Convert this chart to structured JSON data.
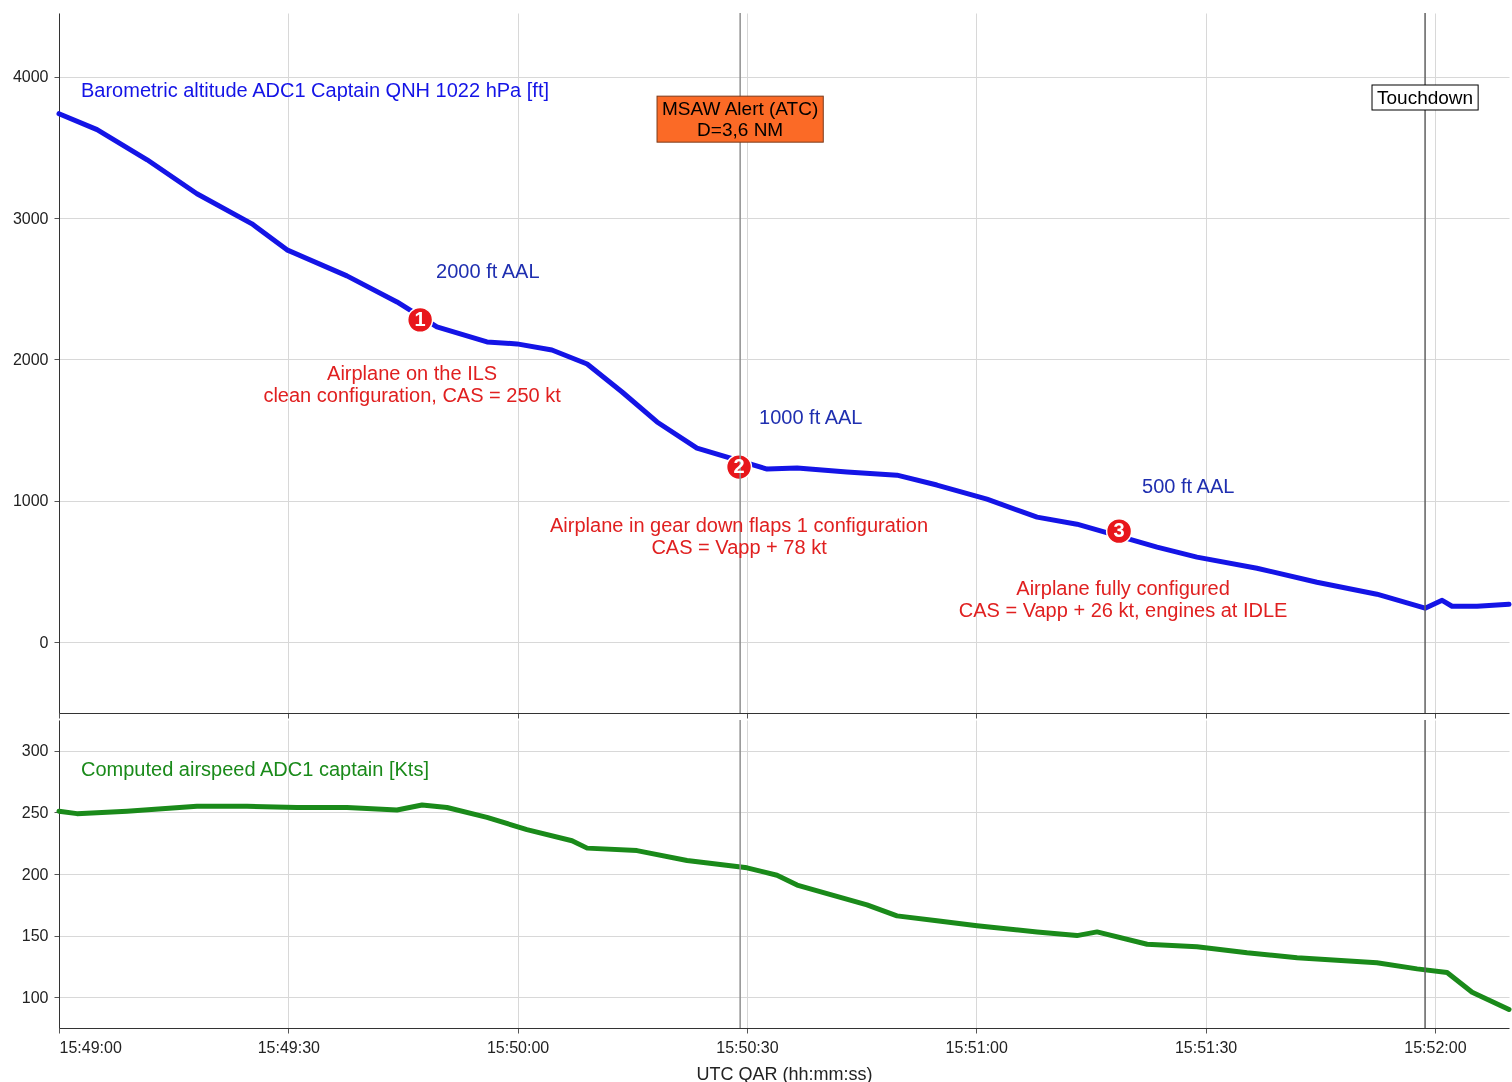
{
  "chart_data": [
    {
      "type": "line",
      "x": [
        15.816667,
        15.81805,
        15.81987,
        15.82168,
        15.82368,
        15.82495,
        15.82713,
        15.82895,
        15.8304,
        15.83222,
        15.83331,
        15.83458,
        15.83586,
        15.83713,
        15.8384,
        15.83985,
        15.8424,
        15.84349,
        15.8453,
        15.84712,
        15.84857,
        15.85039,
        15.85221,
        15.85366,
        15.85657,
        15.85802,
        15.8602,
        15.86238,
        15.86456,
        15.86631,
        15.86693,
        15.86729,
        15.8682,
        15.86936
      ],
      "series": [
        {
          "name": "Barometric altitude ADC1 Captain QNH 1022 hPa [ft]",
          "color": "#1414e6",
          "values": [
            3738,
            3625,
            3412,
            3172,
            2959,
            2775,
            2591,
            2407,
            2230,
            2124,
            2110,
            2067,
            1968,
            1770,
            1558,
            1373,
            1225,
            1232,
            1204,
            1182,
            1112,
            1012,
            885,
            835,
            673,
            602,
            524,
            425,
            340,
            241,
            297,
            255,
            255,
            269
          ]
        },
        {
          "type": "scatter",
          "color": "#e8161b",
          "marker": "circle",
          "x": [
            15.82979,
            15.84138,
            15.85519
          ],
          "values": [
            2280,
            1239,
            786
          ]
        }
      ],
      "xlim": [
        15.816667,
        15.86936
      ],
      "xticks": [
        {
          "value": 15.816667,
          "label": null
        },
        {
          "value": 15.825,
          "label": null
        },
        {
          "value": 15.833333,
          "label": null
        },
        {
          "value": 15.841667,
          "label": null
        },
        {
          "value": 15.85,
          "label": null
        },
        {
          "value": 15.858333,
          "label": null
        },
        {
          "value": 15.866667,
          "label": null
        }
      ],
      "ylim": [
        -500,
        4450
      ],
      "yticks": [
        0,
        1000,
        2000,
        3000,
        4000
      ],
      "grid": true,
      "tick_labels": "y",
      "ref_lines": [
        {
          "axis": "x",
          "value": 15.84142,
          "color": "#909090"
        },
        {
          "axis": "x",
          "value": 15.86631,
          "label": "Touchdown",
          "color": "#606060"
        }
      ],
      "annotations": [
        {
          "text": "2000 ft AAL",
          "x": 15.82979,
          "y": 2280
        },
        {
          "text": "Airplane on the ILS\nclean configuration, CAS = 250 kt",
          "x": 15.82979,
          "y": 2280
        },
        {
          "text": "1000 ft AAL",
          "x": 15.84138,
          "y": 1239
        },
        {
          "text": "Airplane in gear down flaps 1 configuration\nCAS = Vapp + 78 kt",
          "x": 15.84138,
          "y": 1239
        },
        {
          "text": "500 ft AAL",
          "x": 15.85519,
          "y": 786
        },
        {
          "text": "Airplane fully configured\nCAS = Vapp + 26 kt, engines at IDLE",
          "x": 15.85519,
          "y": 786
        },
        {
          "text": "1",
          "x": 15.82979,
          "y": 2280
        },
        {
          "text": "2",
          "x": 15.84138,
          "y": 1239
        },
        {
          "text": "3",
          "x": 15.85519,
          "y": 786
        },
        {
          "text": "MSAW Alert (ATC)\nD=3,6 NM",
          "x": 15.84142,
          "y": 3770
        }
      ]
    },
    {
      "type": "line",
      "x": [
        15.816667,
        15.81732,
        15.81914,
        15.82168,
        15.8235,
        15.82532,
        15.82713,
        15.82895,
        15.82986,
        15.83077,
        15.83222,
        15.83367,
        15.83531,
        15.83586,
        15.83767,
        15.83949,
        15.84167,
        15.84276,
        15.84349,
        15.84458,
        15.84603,
        15.84712,
        15.84857,
        15.85003,
        15.85221,
        15.85366,
        15.85439,
        15.85621,
        15.85802,
        15.85984,
        15.86166,
        15.86456,
        15.86602,
        15.86711,
        15.86802,
        15.86936
      ],
      "series": [
        {
          "name": "Computed airspeed ADC1 captain [Kts]",
          "color": "#1a8a1a",
          "values": [
            251,
            249,
            251,
            255,
            255,
            254,
            254,
            252,
            256,
            254,
            246,
            236,
            227,
            221,
            219,
            211,
            205,
            199,
            191,
            184,
            175,
            166,
            162,
            158,
            153,
            150,
            153,
            143,
            141,
            136,
            132,
            128,
            123,
            120,
            104,
            90
          ]
        }
      ],
      "xlim": [
        15.816667,
        15.86936
      ],
      "xticks": [
        {
          "value": 15.816667,
          "label": "15:49:00"
        },
        {
          "value": 15.825,
          "label": "15:49:30"
        },
        {
          "value": 15.833333,
          "label": "15:50:00"
        },
        {
          "value": 15.841667,
          "label": "15:50:30"
        },
        {
          "value": 15.85,
          "label": "15:51:00"
        },
        {
          "value": 15.858333,
          "label": "15:51:30"
        },
        {
          "value": 15.866667,
          "label": "15:52:00"
        }
      ],
      "ylim": [
        75,
        325
      ],
      "yticks": [
        100,
        150,
        200,
        250,
        300
      ],
      "grid": true,
      "xlabel": "UTC QAR (hh:mm:ss)",
      "ref_lines": [
        {
          "axis": "x",
          "value": 15.84142,
          "color": "#909090"
        },
        {
          "axis": "x",
          "value": 15.86631,
          "color": "#606060"
        }
      ]
    }
  ]
}
